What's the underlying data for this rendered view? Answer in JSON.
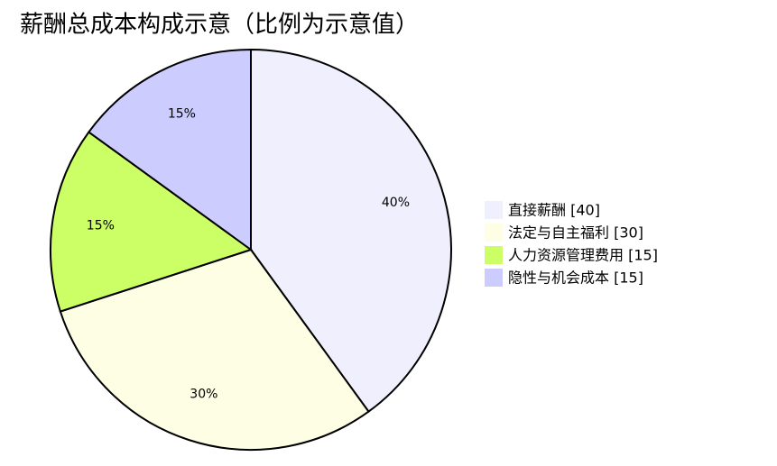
{
  "chart_data": {
    "type": "pie",
    "title": "薪酬总成本构成示意（比例为示意值）",
    "categories": [
      "直接薪酬 [40]",
      "法定与自主福利 [30]",
      "人力资源管理费用 [15]",
      "隐性与机会成本 [15]"
    ],
    "values": [
      40,
      30,
      15,
      15
    ],
    "value_labels": [
      "40%",
      "30%",
      "15%",
      "15%"
    ],
    "colors": [
      "#efeffe",
      "#fefee4",
      "#ccff66",
      "#ccccff"
    ],
    "legend": "right"
  }
}
